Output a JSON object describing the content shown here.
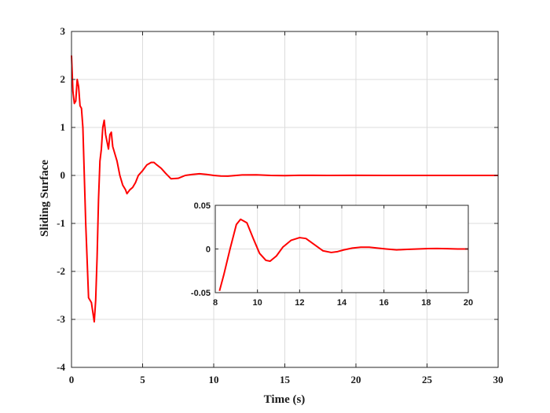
{
  "chart_data": [
    {
      "type": "line",
      "title": "",
      "xlabel": "Time (s)",
      "ylabel": "Sliding Surface",
      "xlim": [
        0,
        30
      ],
      "ylim": [
        -4,
        3
      ],
      "xticks": [
        "0",
        "5",
        "10",
        "15",
        "20",
        "25",
        "30"
      ],
      "yticks": [
        "3",
        "2",
        "1",
        "0",
        "-1",
        "-2",
        "-3",
        "-4"
      ],
      "grid": true,
      "series": [
        {
          "color": "#ff0000",
          "x": [
            0,
            0.1,
            0.2,
            0.3,
            0.4,
            0.5,
            0.6,
            0.7,
            0.8,
            1.0,
            1.2,
            1.4,
            1.6,
            1.7,
            1.8,
            1.9,
            2.0,
            2.1,
            2.2,
            2.3,
            2.4,
            2.6,
            2.7,
            2.8,
            2.9,
            3.1,
            3.2,
            3.4,
            3.6,
            3.8,
            3.9,
            4.1,
            4.3,
            4.5,
            4.7,
            5.0,
            5.3,
            5.6,
            5.8,
            6.0,
            6.3,
            6.6,
            7.0,
            7.5,
            8.0,
            8.5,
            9.0,
            9.5,
            10.0,
            10.5,
            11.0,
            12.0,
            13.0,
            14.0,
            15.0,
            16.0,
            17.0,
            18.0,
            20.0,
            22.0,
            25.0,
            30.0
          ],
          "y": [
            2.5,
            1.75,
            1.5,
            1.55,
            2.0,
            1.85,
            1.45,
            1.4,
            1.0,
            -1.0,
            -2.55,
            -2.65,
            -3.05,
            -2.6,
            -1.7,
            -0.5,
            0.3,
            0.55,
            1.0,
            1.15,
            0.85,
            0.55,
            0.85,
            0.9,
            0.6,
            0.4,
            0.3,
            0.0,
            -0.2,
            -0.3,
            -0.38,
            -0.3,
            -0.25,
            -0.15,
            0.0,
            0.1,
            0.22,
            0.27,
            0.27,
            0.22,
            0.15,
            0.05,
            -0.07,
            -0.06,
            0.0,
            0.02,
            0.035,
            0.02,
            0.0,
            -0.012,
            -0.015,
            0.01,
            0.013,
            0.0,
            -0.005,
            0.002,
            0.003,
            0.0,
            0.002,
            0.0,
            0.0,
            0.0
          ]
        }
      ]
    },
    {
      "type": "line",
      "title": "",
      "xlabel": "",
      "ylabel": "",
      "xlim": [
        8,
        20
      ],
      "ylim": [
        -0.05,
        0.05
      ],
      "xticks": [
        "8",
        "10",
        "12",
        "14",
        "16",
        "18",
        "20"
      ],
      "yticks": [
        "0.05",
        "0",
        "-0.05"
      ],
      "grid": true,
      "series": [
        {
          "color": "#ff0000",
          "x": [
            8.2,
            8.4,
            8.7,
            9.0,
            9.2,
            9.5,
            9.8,
            10.1,
            10.4,
            10.6,
            10.9,
            11.2,
            11.6,
            12.0,
            12.3,
            12.7,
            13.1,
            13.5,
            13.8,
            14.1,
            14.5,
            14.9,
            15.3,
            15.7,
            16.1,
            16.6,
            17.1,
            17.6,
            18.1,
            18.5,
            19.0,
            19.5,
            20.0
          ],
          "y": [
            -0.048,
            -0.03,
            0.0,
            0.028,
            0.034,
            0.03,
            0.012,
            -0.005,
            -0.013,
            -0.014,
            -0.008,
            0.002,
            0.01,
            0.013,
            0.012,
            0.005,
            -0.002,
            -0.004,
            -0.003,
            -0.001,
            0.001,
            0.002,
            0.002,
            0.001,
            0.0,
            -0.001,
            -0.0005,
            0.0,
            0.0005,
            0.0006,
            0.0003,
            0.0,
            0.0
          ]
        }
      ]
    }
  ]
}
